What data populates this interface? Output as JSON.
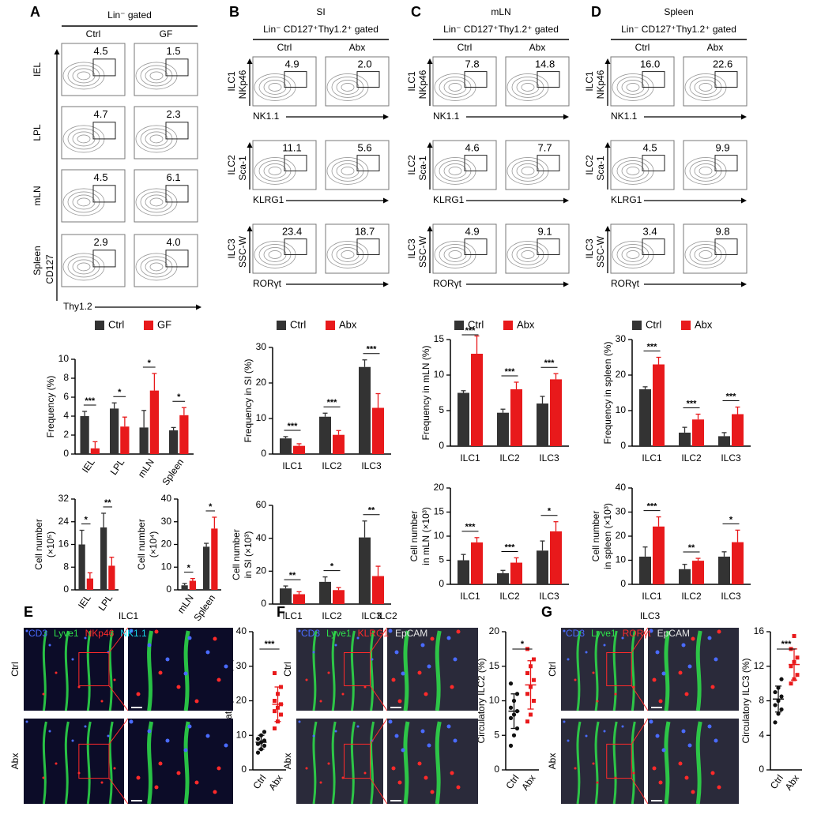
{
  "panel_letters": [
    "A",
    "B",
    "C",
    "D",
    "E",
    "F",
    "G"
  ],
  "flow": [
    {
      "title": "Lin⁻ gated",
      "columns": [
        "Ctrl",
        "GF"
      ],
      "y_axis": "CD127",
      "x_axis": "Thy1.2",
      "rows": [
        {
          "label": "IEL",
          "gates": [
            "4.5",
            "1.5"
          ]
        },
        {
          "label": "LPL",
          "gates": [
            "4.7",
            "2.3"
          ]
        },
        {
          "label": "mLN",
          "gates": [
            "4.5",
            "6.1"
          ]
        },
        {
          "label": "Spleen",
          "gates": [
            "2.9",
            "4.0"
          ]
        }
      ]
    },
    {
      "tissue": "SI",
      "title": "Lin⁻ CD127⁺Thy1.2⁺ gated",
      "columns": [
        "Ctrl",
        "Abx"
      ],
      "rows": [
        {
          "label": "ILC1",
          "y_axis": "NKp46",
          "x_axis": "NK1.1",
          "gates": [
            "4.9",
            "2.0"
          ]
        },
        {
          "label": "ILC2",
          "y_axis": "Sca-1",
          "x_axis": "KLRG1",
          "gates": [
            "11.1",
            "5.6"
          ]
        },
        {
          "label": "ILC3",
          "y_axis": "SSC-W",
          "x_axis": "RORγt",
          "gates": [
            "23.4",
            "18.7"
          ]
        }
      ]
    },
    {
      "tissue": "mLN",
      "title": "Lin⁻ CD127⁺Thy1.2⁺ gated",
      "columns": [
        "Ctrl",
        "Abx"
      ],
      "rows": [
        {
          "label": "ILC1",
          "y_axis": "NKp46",
          "x_axis": "NK1.1",
          "gates": [
            "7.8",
            "14.8"
          ]
        },
        {
          "label": "ILC2",
          "y_axis": "Sca-1",
          "x_axis": "KLRG1",
          "gates": [
            "4.6",
            "7.7"
          ]
        },
        {
          "label": "ILC3",
          "y_axis": "SSC-W",
          "x_axis": "RORγt",
          "gates": [
            "4.9",
            "9.1"
          ]
        }
      ]
    },
    {
      "tissue": "Spleen",
      "title": "Lin⁻ CD127⁺Thy1.2⁺ gated",
      "columns": [
        "Ctrl",
        "Abx"
      ],
      "rows": [
        {
          "label": "ILC1",
          "y_axis": "NKp46",
          "x_axis": "NK1.1",
          "gates": [
            "16.0",
            "22.6"
          ]
        },
        {
          "label": "ILC2",
          "y_axis": "Sca-1",
          "x_axis": "KLRG1",
          "gates": [
            "4.5",
            "9.9"
          ]
        },
        {
          "label": "ILC3",
          "y_axis": "SSC-W",
          "x_axis": "RORγt",
          "gates": [
            "3.4",
            "9.8"
          ]
        }
      ]
    }
  ],
  "chart_data": [
    {
      "type": "bar",
      "ylabel": [
        "Frequency (%)"
      ],
      "categories": [
        "IEL",
        "LPL",
        "mLN",
        "Spleen"
      ],
      "ylim": [
        0,
        10
      ],
      "yticks": [
        0,
        2,
        4,
        6,
        8,
        10
      ],
      "legend": true,
      "series": [
        {
          "name": "Ctrl",
          "color": "#333333",
          "values": [
            4.0,
            4.8,
            2.8,
            2.5
          ],
          "errors": [
            0.5,
            0.6,
            1.8,
            0.3
          ]
        },
        {
          "name": "GF",
          "color": "#e8191b",
          "values": [
            0.6,
            2.9,
            6.7,
            4.1
          ],
          "errors": [
            0.7,
            1.0,
            1.8,
            0.8
          ]
        }
      ],
      "significance": [
        "***",
        "*",
        "*",
        "*"
      ]
    },
    {
      "type": "bar",
      "ylabel": [
        "Cell number",
        "(×10⁵)"
      ],
      "categories": [
        "IEL",
        "LPL"
      ],
      "ylim": [
        0,
        32
      ],
      "yticks": [
        0,
        8,
        16,
        24,
        32
      ],
      "series": [
        {
          "name": "Ctrl",
          "color": "#333333",
          "values": [
            16,
            22
          ],
          "errors": [
            5,
            5
          ]
        },
        {
          "name": "GF",
          "color": "#e8191b",
          "values": [
            4,
            8.5
          ],
          "errors": [
            2,
            3
          ]
        }
      ],
      "significance": [
        "*",
        "**"
      ]
    },
    {
      "type": "bar",
      "ylabel": [
        "Cell number",
        "(×10⁴)"
      ],
      "categories": [
        "mLN",
        "Spleen"
      ],
      "ylim": [
        0,
        40
      ],
      "yticks": [
        0,
        10,
        20,
        30,
        40
      ],
      "series": [
        {
          "name": "Ctrl",
          "color": "#333333",
          "values": [
            2,
            19
          ],
          "errors": [
            0.8,
            1.5
          ]
        },
        {
          "name": "GF",
          "color": "#e8191b",
          "values": [
            4,
            27
          ],
          "errors": [
            1,
            5
          ]
        }
      ],
      "significance": [
        "*",
        "*"
      ]
    },
    {
      "type": "bar",
      "ylabel": [
        "Frequency in SI (%)"
      ],
      "categories": [
        "ILC1",
        "ILC2",
        "ILC3"
      ],
      "ylim": [
        0,
        30
      ],
      "yticks": [
        0,
        10,
        20,
        30
      ],
      "legend": true,
      "series": [
        {
          "name": "Ctrl",
          "color": "#333333",
          "values": [
            4.4,
            10.5,
            24.5
          ],
          "errors": [
            0.5,
            1.0,
            2.0
          ]
        },
        {
          "name": "Abx",
          "color": "#e8191b",
          "values": [
            2.3,
            5.4,
            13
          ],
          "errors": [
            0.6,
            1.2,
            4
          ]
        }
      ],
      "significance": [
        "***",
        "***",
        "***"
      ]
    },
    {
      "type": "bar",
      "ylabel": [
        "Cell number",
        "in SI (×10³)"
      ],
      "categories": [
        "ILC1",
        "ILC2",
        "ILC3"
      ],
      "ylim": [
        0,
        60
      ],
      "yticks": [
        0,
        20,
        40,
        60
      ],
      "series": [
        {
          "name": "Ctrl",
          "color": "#333333",
          "values": [
            9.5,
            13.5,
            40.5
          ],
          "errors": [
            1.5,
            3,
            10
          ]
        },
        {
          "name": "Abx",
          "color": "#e8191b",
          "values": [
            6,
            8.5,
            17
          ],
          "errors": [
            1.5,
            1.5,
            6
          ]
        }
      ],
      "significance": [
        "**",
        "*",
        "**"
      ]
    },
    {
      "type": "bar",
      "ylabel": [
        "Frequency in mLN (%)"
      ],
      "categories": [
        "ILC1",
        "ILC2",
        "ILC3"
      ],
      "ylim": [
        0,
        15
      ],
      "yticks": [
        0,
        5,
        10,
        15
      ],
      "legend": true,
      "series": [
        {
          "name": "Ctrl",
          "color": "#333333",
          "values": [
            7.5,
            4.7,
            6
          ],
          "errors": [
            0.3,
            0.5,
            1
          ]
        },
        {
          "name": "Abx",
          "color": "#e8191b",
          "values": [
            13,
            8,
            9.4
          ],
          "errors": [
            2.5,
            1,
            0.8
          ]
        }
      ],
      "significance": [
        "***",
        "***",
        "***"
      ]
    },
    {
      "type": "bar",
      "ylabel": [
        "Cell number",
        "in mLN (×10³)"
      ],
      "categories": [
        "ILC1",
        "ILC2",
        "ILC3"
      ],
      "ylim": [
        0,
        20
      ],
      "yticks": [
        0,
        5,
        10,
        15,
        20
      ],
      "series": [
        {
          "name": "Ctrl",
          "color": "#333333",
          "values": [
            5,
            2.3,
            7
          ],
          "errors": [
            1.2,
            0.6,
            2
          ]
        },
        {
          "name": "Abx",
          "color": "#e8191b",
          "values": [
            8.7,
            4.5,
            11
          ],
          "errors": [
            1,
            1,
            2
          ]
        }
      ],
      "significance": [
        "***",
        "***",
        "*"
      ]
    },
    {
      "type": "bar",
      "ylabel": [
        "Frequency in spleen (%)"
      ],
      "categories": [
        "ILC1",
        "ILC2",
        "ILC3"
      ],
      "ylim": [
        0,
        30
      ],
      "yticks": [
        0,
        10,
        20,
        30
      ],
      "legend": true,
      "series": [
        {
          "name": "Ctrl",
          "color": "#333333",
          "values": [
            16,
            3.8,
            2.8
          ],
          "errors": [
            0.7,
            1.5,
            1
          ]
        },
        {
          "name": "Abx",
          "color": "#e8191b",
          "values": [
            23,
            7.5,
            9
          ],
          "errors": [
            2,
            1.5,
            2
          ]
        }
      ],
      "significance": [
        "***",
        "***",
        "***"
      ]
    },
    {
      "type": "bar",
      "ylabel": [
        "Cell number",
        "in spleen (×10³)"
      ],
      "categories": [
        "ILC1",
        "ILC2",
        "ILC3"
      ],
      "ylim": [
        0,
        40
      ],
      "yticks": [
        0,
        10,
        20,
        30,
        40
      ],
      "series": [
        {
          "name": "Ctrl",
          "color": "#333333",
          "values": [
            11.5,
            6.3,
            11.5
          ],
          "errors": [
            4,
            2,
            2
          ]
        },
        {
          "name": "Abx",
          "color": "#e8191b",
          "values": [
            24,
            9.8,
            17.5
          ],
          "errors": [
            4,
            1,
            5
          ]
        }
      ],
      "significance": [
        "***",
        "**",
        "*"
      ]
    },
    {
      "type": "dot",
      "ylabel": [
        "Circulatory ILC1 (%)"
      ],
      "categories": [
        "Ctrl",
        "Abx"
      ],
      "ylim": [
        0,
        40
      ],
      "yticks": [
        0,
        10,
        20,
        30,
        40
      ],
      "colors": [
        "#111111",
        "#e8191b"
      ],
      "points": [
        [
          5,
          6,
          7,
          7.5,
          8,
          8.5,
          9,
          10,
          11
        ],
        [
          12,
          14,
          16,
          17,
          18,
          19,
          20,
          22,
          24,
          28
        ]
      ],
      "means": [
        8,
        19
      ],
      "sd": [
        2,
        5
      ],
      "significance": "***"
    },
    {
      "type": "dot",
      "ylabel": [
        "Circulatory ILC2 (%)"
      ],
      "categories": [
        "Ctrl",
        "Abx"
      ],
      "ylim": [
        0,
        20
      ],
      "yticks": [
        0,
        5,
        10,
        15,
        20
      ],
      "colors": [
        "#111111",
        "#e8191b"
      ],
      "points": [
        [
          3.5,
          5,
          6,
          7.5,
          8,
          8.5,
          9,
          10,
          11,
          12.5
        ],
        [
          7,
          8,
          10,
          11,
          12,
          13,
          14,
          15,
          16,
          17.5
        ]
      ],
      "means": [
        8.5,
        12.3
      ],
      "sd": [
        2.5,
        3.5
      ],
      "significance": "*"
    },
    {
      "type": "dot",
      "ylabel": [
        "Circulatory ILC3 (%)"
      ],
      "categories": [
        "Ctrl",
        "Abx"
      ],
      "ylim": [
        0,
        16
      ],
      "yticks": [
        0,
        4,
        8,
        12,
        16
      ],
      "colors": [
        "#111111",
        "#e8191b"
      ],
      "points": [
        [
          5.5,
          6.5,
          7,
          7.5,
          8,
          8.5,
          9,
          9.5,
          10.5
        ],
        [
          10,
          10.5,
          11,
          12,
          12.5,
          13,
          14,
          15.5
        ]
      ],
      "means": [
        8.2,
        12.2
      ],
      "sd": [
        1.5,
        1.8
      ],
      "significance": "***"
    }
  ],
  "images": [
    {
      "title": "ILC1",
      "rows": [
        "Ctrl",
        "Abx"
      ],
      "channels": [
        {
          "name": "CD3",
          "color": "#4a6bff"
        },
        {
          "name": "Lyve1",
          "color": "#2ee04a"
        },
        {
          "name": "NKp46",
          "color": "#ff2a2a"
        },
        {
          "name": "NK1.1",
          "color": "#19d6e6"
        }
      ]
    },
    {
      "title": "ILC2",
      "rows": [
        "Ctrl",
        "Abx"
      ],
      "channels": [
        {
          "name": "CD3",
          "color": "#4a6bff"
        },
        {
          "name": "Lyve1",
          "color": "#2ee04a"
        },
        {
          "name": "KLRG1",
          "color": "#ff2a2a"
        },
        {
          "name": "EpCAM",
          "color": "#e6e6e6"
        }
      ]
    },
    {
      "title": "ILC3",
      "rows": [
        "Ctrl",
        "Abx"
      ],
      "channels": [
        {
          "name": "CD3",
          "color": "#4a6bff"
        },
        {
          "name": "Lyve1",
          "color": "#2ee04a"
        },
        {
          "name": "RORγt",
          "color": "#ff2a2a"
        },
        {
          "name": "EpCAM",
          "color": "#e6e6e6"
        }
      ]
    }
  ]
}
